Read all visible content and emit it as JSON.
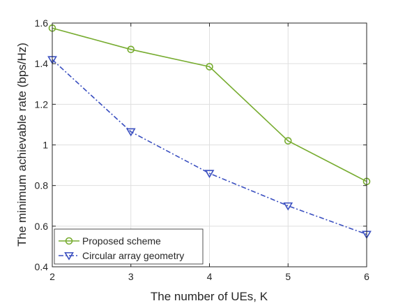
{
  "chart_data": {
    "type": "line",
    "title": "",
    "xlabel": "The number of UEs, K",
    "ylabel": "The minimum achievable rate (bps/Hz)",
    "xlim": [
      2,
      6
    ],
    "ylim": [
      0.4,
      1.6
    ],
    "xticks": [
      2,
      3,
      4,
      5,
      6
    ],
    "xtick_labels": [
      "2",
      "3",
      "4",
      "5",
      "6"
    ],
    "yticks": [
      0.4,
      0.6,
      0.8,
      1.0,
      1.2,
      1.4,
      1.6
    ],
    "ytick_labels": [
      "0.4",
      "0.6",
      "0.8",
      "1",
      "1.2",
      "1.4",
      "1.6"
    ],
    "grid": true,
    "legend_position": "bottom-left",
    "x": [
      2,
      3,
      4,
      5,
      6
    ],
    "series": [
      {
        "name": "Proposed scheme",
        "values": [
          1.575,
          1.47,
          1.385,
          1.02,
          0.82
        ],
        "color": "#77AC30",
        "line_style": "solid",
        "marker": "circle"
      },
      {
        "name": "Circular array geometry",
        "values": [
          1.42,
          1.065,
          0.86,
          0.7,
          0.56
        ],
        "color": "#3A4FC0",
        "line_style": "dash-dot",
        "marker": "triangle-down"
      }
    ]
  }
}
